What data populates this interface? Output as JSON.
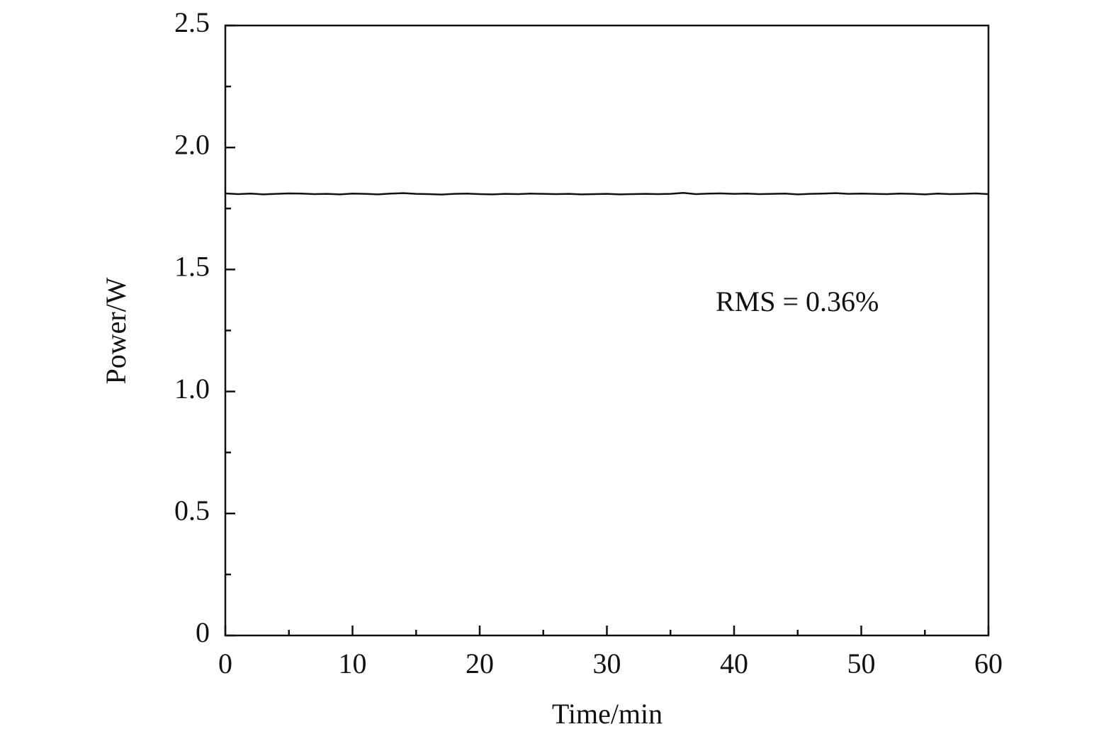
{
  "chart_data": {
    "type": "line",
    "x_label": "Time/min",
    "y_label": "Power/W",
    "annotation": "RMS = 0.36%",
    "x": [
      0,
      1,
      2,
      3,
      4,
      5,
      6,
      7,
      8,
      9,
      10,
      11,
      12,
      13,
      14,
      15,
      16,
      17,
      18,
      19,
      20,
      21,
      22,
      23,
      24,
      25,
      26,
      27,
      28,
      29,
      30,
      31,
      32,
      33,
      34,
      35,
      36,
      37,
      38,
      39,
      40,
      41,
      42,
      43,
      44,
      45,
      46,
      47,
      48,
      49,
      50,
      51,
      52,
      53,
      54,
      55,
      56,
      57,
      58,
      59,
      60
    ],
    "series": [
      {
        "name": "Power",
        "color": "#111111",
        "values": [
          1.812,
          1.809,
          1.811,
          1.808,
          1.81,
          1.812,
          1.811,
          1.809,
          1.81,
          1.808,
          1.811,
          1.81,
          1.808,
          1.811,
          1.813,
          1.81,
          1.809,
          1.807,
          1.81,
          1.811,
          1.809,
          1.808,
          1.81,
          1.809,
          1.811,
          1.81,
          1.809,
          1.81,
          1.808,
          1.809,
          1.81,
          1.808,
          1.809,
          1.81,
          1.809,
          1.81,
          1.814,
          1.809,
          1.811,
          1.812,
          1.81,
          1.811,
          1.809,
          1.81,
          1.811,
          1.808,
          1.81,
          1.811,
          1.813,
          1.81,
          1.811,
          1.81,
          1.809,
          1.811,
          1.81,
          1.808,
          1.811,
          1.809,
          1.81,
          1.812,
          1.809
        ]
      }
    ],
    "xlim": [
      0,
      60
    ],
    "xticks": [
      0,
      10,
      20,
      30,
      40,
      50,
      60
    ],
    "ylim": [
      0,
      2.5
    ],
    "yticks": [
      0,
      0.5,
      {
        "value": 1,
        "label": "1.0"
      },
      1.5,
      {
        "value": 2,
        "label": "2.0"
      },
      2.5
    ],
    "grid": false
  }
}
